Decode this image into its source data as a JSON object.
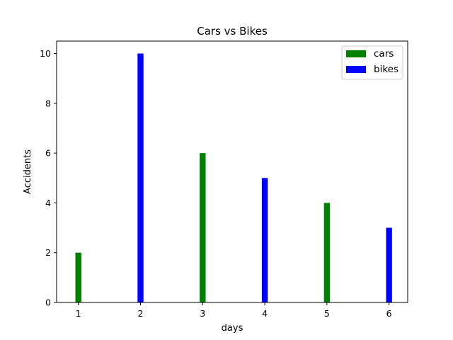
{
  "chart_data": {
    "type": "bar",
    "title": "Cars vs Bikes",
    "xlabel": "days",
    "ylabel": "Accidents",
    "xlim": [
      0.65,
      6.3
    ],
    "ylim": [
      0,
      10.5
    ],
    "xticks": [
      1,
      2,
      3,
      4,
      5,
      6
    ],
    "yticks": [
      0,
      2,
      4,
      6,
      8,
      10
    ],
    "grid": false,
    "legend_position": "top-right",
    "series": [
      {
        "name": "cars",
        "color": "#008000",
        "x": [
          1,
          3,
          5
        ],
        "values": [
          2,
          6,
          4
        ]
      },
      {
        "name": "bikes",
        "color": "#0000ff",
        "x": [
          2,
          4,
          6
        ],
        "values": [
          10,
          5,
          3
        ]
      }
    ]
  }
}
